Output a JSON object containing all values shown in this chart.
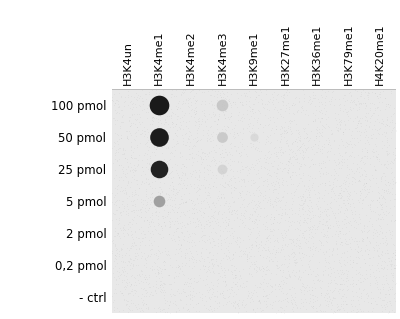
{
  "columns": [
    "H3K4un",
    "H3K4me1",
    "H3K4me2",
    "H3K4me3",
    "H3K9me1",
    "H3K27me1",
    "H3K36me1",
    "H3K79me1",
    "H4K20me1"
  ],
  "rows": [
    "100 pmol",
    "50 pmol",
    "25 pmol",
    "5 pmol",
    "2 pmol",
    "0,2 pmol",
    "- ctrl"
  ],
  "fig_bg": "#ffffff",
  "panel_bg": "#e8e8e8",
  "dots": [
    {
      "col": 1,
      "row": 0,
      "size": 200,
      "color": "#1a1a1a",
      "alpha": 1.0
    },
    {
      "col": 1,
      "row": 1,
      "size": 180,
      "color": "#1c1c1c",
      "alpha": 1.0
    },
    {
      "col": 1,
      "row": 2,
      "size": 160,
      "color": "#222222",
      "alpha": 1.0
    },
    {
      "col": 1,
      "row": 3,
      "size": 70,
      "color": "#999999",
      "alpha": 0.9
    },
    {
      "col": 3,
      "row": 0,
      "size": 70,
      "color": "#c0c0c0",
      "alpha": 0.8
    },
    {
      "col": 3,
      "row": 1,
      "size": 60,
      "color": "#c0c0c0",
      "alpha": 0.75
    },
    {
      "col": 3,
      "row": 2,
      "size": 50,
      "color": "#cccccc",
      "alpha": 0.7
    },
    {
      "col": 4,
      "row": 1,
      "size": 35,
      "color": "#d0d0d0",
      "alpha": 0.6
    }
  ],
  "fig_width": 4.0,
  "fig_height": 3.19,
  "dpi": 100,
  "label_fontsize": 8.5,
  "tick_fontsize": 8.5,
  "col_label_fontsize": 8.0
}
